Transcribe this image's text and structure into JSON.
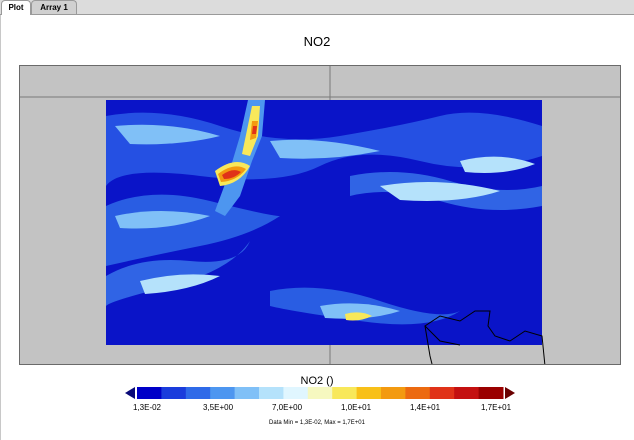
{
  "tabs": [
    {
      "label": "Plot",
      "active": true
    },
    {
      "label": "Array 1",
      "active": false
    }
  ],
  "plot": {
    "title": "NO2",
    "colorbar_title": "NO2 ()",
    "data_range_text": "Data Min = 1,3E-02, Max = 1,7E+01",
    "colorbar_ticks": [
      "1,3E-02",
      "3,5E+00",
      "7,0E+00",
      "1,0E+01",
      "1,4E+01",
      "1,7E+01"
    ],
    "colorbar_colors": [
      "#0000c8",
      "#1a3cdc",
      "#2f6ae8",
      "#4d96f0",
      "#80c0f7",
      "#b5e2fb",
      "#e0f6ff",
      "#f6f8c0",
      "#f8e85a",
      "#f8c018",
      "#f39a10",
      "#ec6a10",
      "#e03218",
      "#c41010",
      "#9a0000"
    ],
    "colorbar_min_color": "#0a0a78",
    "colorbar_max_color": "#6a0000",
    "background_color": "#c3c3c3",
    "field_low_color": "#0a14c8"
  }
}
